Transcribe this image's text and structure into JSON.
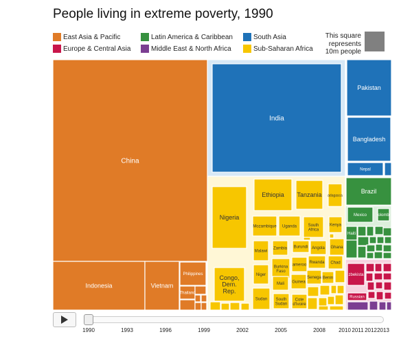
{
  "chart_data": {
    "type": "treemap",
    "title": "People living in extreme poverty, 1990",
    "legend": [
      {
        "name": "East Asia & Pacific",
        "color": "#e07b27"
      },
      {
        "name": "Latin America & Caribbean",
        "color": "#37913f"
      },
      {
        "name": "South Asia",
        "color": "#1f72b8"
      },
      {
        "name": "Europe & Central Asia",
        "color": "#c8164a"
      },
      {
        "name": "Middle East & North Africa",
        "color": "#7b3e91"
      },
      {
        "name": "Sub-Saharan Africa",
        "color": "#f7c600"
      }
    ],
    "scale_note": [
      "This square",
      "represents",
      "10m people"
    ],
    "tiles": [
      {
        "label": "China",
        "region": "East Asia & Pacific"
      },
      {
        "label": "Indonesia",
        "region": "East Asia & Pacific"
      },
      {
        "label": "Vietnam",
        "region": "East Asia & Pacific"
      },
      {
        "label": "Philippines",
        "region": "East Asia & Pacific"
      },
      {
        "label": "Thailand",
        "region": "East Asia & Pacific"
      },
      {
        "label": "India",
        "region": "South Asia"
      },
      {
        "label": "Pakistan",
        "region": "South Asia"
      },
      {
        "label": "Bangladesh",
        "region": "South Asia"
      },
      {
        "label": "Nepal",
        "region": "South Asia"
      },
      {
        "label": "Brazil",
        "region": "Latin America & Caribbean"
      },
      {
        "label": "Mexico",
        "region": "Latin America & Caribbean"
      },
      {
        "label": "olomb",
        "region": "Latin America & Caribbean"
      },
      {
        "label": "Haiti",
        "region": "Latin America & Caribbean"
      },
      {
        "label": "Nigeria",
        "region": "Sub-Saharan Africa"
      },
      {
        "label": "Ethiopia",
        "region": "Sub-Saharan Africa"
      },
      {
        "label": "Tanzania",
        "region": "Sub-Saharan Africa"
      },
      {
        "label": "adagasca",
        "region": "Sub-Saharan Africa"
      },
      {
        "label": "Mozambique",
        "region": "Sub-Saharan Africa"
      },
      {
        "label": "Uganda",
        "region": "Sub-Saharan Africa"
      },
      {
        "label": "South Africa",
        "region": "Sub-Saharan Africa"
      },
      {
        "label": "Kenya",
        "region": "Sub-Saharan Africa"
      },
      {
        "label": "Malawi",
        "region": "Sub-Saharan Africa"
      },
      {
        "label": "Zambia",
        "region": "Sub-Saharan Africa"
      },
      {
        "label": "Burundi",
        "region": "Sub-Saharan Africa"
      },
      {
        "label": "Angola",
        "region": "Sub-Saharan Africa"
      },
      {
        "label": "Ghana",
        "region": "Sub-Saharan Africa"
      },
      {
        "label": "Burkina Faso",
        "region": "Sub-Saharan Africa"
      },
      {
        "label": "ameroo",
        "region": "Sub-Saharan Africa"
      },
      {
        "label": "Rwanda",
        "region": "Sub-Saharan Africa"
      },
      {
        "label": "Chad",
        "region": "Sub-Saharan Africa"
      },
      {
        "label": "Niger",
        "region": "Sub-Saharan Africa"
      },
      {
        "label": "Mali",
        "region": "Sub-Saharan Africa"
      },
      {
        "label": "Guinea",
        "region": "Sub-Saharan Africa"
      },
      {
        "label": "Senega",
        "region": "Sub-Saharan Africa"
      },
      {
        "label": "Benin",
        "region": "Sub-Saharan Africa"
      },
      {
        "label": "Congo, Dem. Rep.",
        "region": "Sub-Saharan Africa"
      },
      {
        "label": "Sudan",
        "region": "Sub-Saharan Africa"
      },
      {
        "label": "South Sudan",
        "region": "Sub-Saharan Africa"
      },
      {
        "label": "Cote d'Ivoire",
        "region": "Sub-Saharan Africa"
      },
      {
        "label": "zbekista",
        "region": "Europe & Central Asia"
      },
      {
        "label": "Russian",
        "region": "Europe & Central Asia"
      }
    ]
  },
  "controls": {
    "play_label": "Play",
    "years": [
      "1990",
      "1993",
      "1996",
      "1999",
      "2002",
      "2005",
      "2008",
      "2010",
      "2011",
      "2012",
      "2013"
    ],
    "current_year": "1990"
  }
}
